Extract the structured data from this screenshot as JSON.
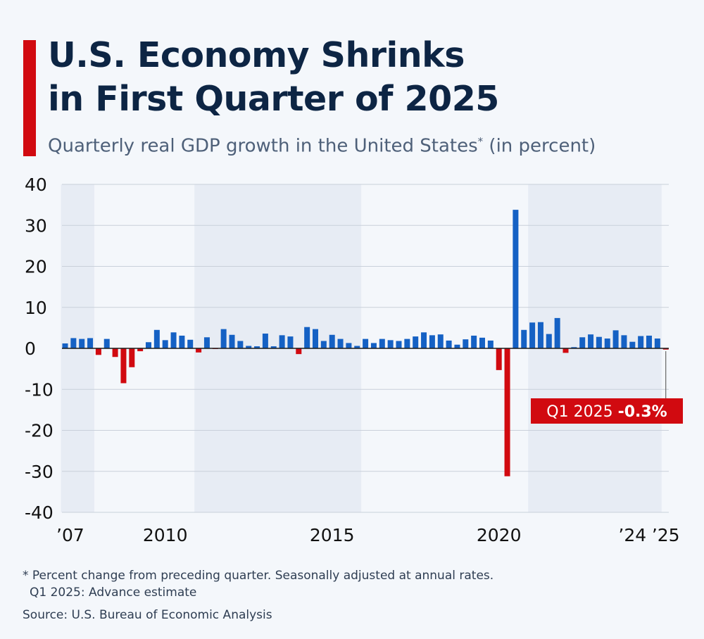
{
  "header": {
    "title_line1": "U.S. Economy Shrinks",
    "title_line2": "in First Quarter of 2025",
    "subtitle_main": "Quarterly real GDP growth in the United States",
    "subtitle_marker": "*",
    "subtitle_tail": " (in percent)",
    "accent_color": "#d10a10"
  },
  "chart_data": {
    "type": "bar",
    "x_start_period": "Q1 2007",
    "x_end_period": "Q1 2025",
    "ylim": [
      -40,
      40
    ],
    "yticks": [
      "40",
      "30",
      "20",
      "10",
      "0",
      "-10",
      "-20",
      "-30",
      "-40"
    ],
    "xtick_labels": [
      {
        "label": "’07",
        "quarter_index": 0
      },
      {
        "label": "2010",
        "quarter_index": 12
      },
      {
        "label": "2015",
        "quarter_index": 32
      },
      {
        "label": "2020",
        "quarter_index": 52
      },
      {
        "label": "’24",
        "quarter_index": 68
      },
      {
        "label": "’25",
        "quarter_index": 72
      }
    ],
    "shaded_quarter_ranges": [
      [
        0,
        3
      ],
      [
        16,
        35
      ],
      [
        56,
        71
      ]
    ],
    "positive_color": "#1561c4",
    "negative_color": "#d10a10",
    "values": [
      1.2,
      2.5,
      2.3,
      2.5,
      -1.6,
      2.3,
      -2.1,
      -8.5,
      -4.6,
      -0.7,
      1.5,
      4.5,
      2.0,
      3.9,
      3.1,
      2.1,
      -1.0,
      2.7,
      -0.1,
      4.7,
      3.3,
      1.8,
      0.6,
      0.5,
      3.6,
      0.5,
      3.2,
      2.9,
      -1.4,
      5.2,
      4.7,
      1.8,
      3.3,
      2.3,
      1.3,
      0.6,
      2.3,
      1.3,
      2.3,
      2.0,
      1.8,
      2.3,
      2.9,
      3.9,
      3.2,
      3.4,
      1.9,
      0.9,
      2.2,
      3.1,
      2.6,
      1.9,
      -5.3,
      -31.2,
      33.8,
      4.5,
      6.3,
      6.4,
      3.5,
      7.4,
      -1.1,
      0.3,
      2.7,
      3.4,
      2.8,
      2.4,
      4.4,
      3.2,
      1.6,
      3.0,
      3.1,
      2.4,
      -0.3
    ],
    "annotation": {
      "prefix": "Q1 2025 ",
      "value": "-0.3%",
      "quarter_index": 72
    }
  },
  "footer": {
    "note_line1": "* Percent change from preceding quarter. Seasonally adjusted at annual rates.",
    "note_line2": "Q1 2025: Advance estimate",
    "source": "Source: U.S. Bureau of Economic Analysis"
  }
}
